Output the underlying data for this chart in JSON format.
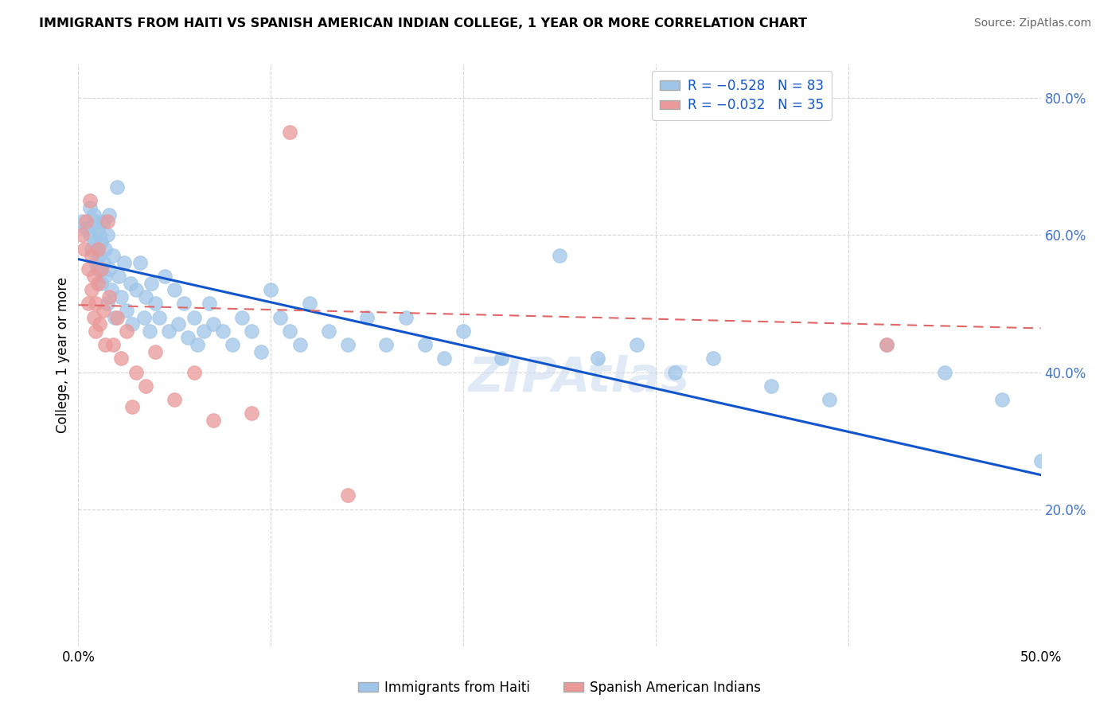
{
  "title": "IMMIGRANTS FROM HAITI VS SPANISH AMERICAN INDIAN COLLEGE, 1 YEAR OR MORE CORRELATION CHART",
  "source": "Source: ZipAtlas.com",
  "ylabel": "College, 1 year or more",
  "xlim": [
    0.0,
    0.5
  ],
  "ylim": [
    0.0,
    0.85
  ],
  "blue_color": "#9fc5e8",
  "pink_color": "#ea9999",
  "blue_line_color": "#1155cc",
  "pink_line_color": "#e06666",
  "legend_text_color": "#1155cc",
  "watermark": "ZIPAtlas",
  "legend_entry1_label": "Immigrants from Haiti",
  "legend_entry2_label": "Spanish American Indians",
  "blue_line_x": [
    0.0,
    0.5
  ],
  "blue_line_y": [
    0.565,
    0.25
  ],
  "pink_line_x": [
    0.0,
    0.5
  ],
  "pink_line_y": [
    0.498,
    0.464
  ],
  "blue_scatter_x": [
    0.002,
    0.004,
    0.006,
    0.006,
    0.007,
    0.008,
    0.008,
    0.009,
    0.009,
    0.01,
    0.01,
    0.01,
    0.011,
    0.011,
    0.012,
    0.012,
    0.013,
    0.013,
    0.014,
    0.014,
    0.015,
    0.015,
    0.016,
    0.016,
    0.017,
    0.018,
    0.019,
    0.02,
    0.021,
    0.022,
    0.024,
    0.025,
    0.027,
    0.028,
    0.03,
    0.032,
    0.034,
    0.035,
    0.037,
    0.038,
    0.04,
    0.042,
    0.045,
    0.047,
    0.05,
    0.052,
    0.055,
    0.057,
    0.06,
    0.062,
    0.065,
    0.068,
    0.07,
    0.075,
    0.08,
    0.085,
    0.09,
    0.095,
    0.1,
    0.105,
    0.11,
    0.115,
    0.12,
    0.13,
    0.14,
    0.15,
    0.16,
    0.17,
    0.18,
    0.19,
    0.2,
    0.22,
    0.25,
    0.27,
    0.29,
    0.31,
    0.33,
    0.36,
    0.39,
    0.42,
    0.45,
    0.48,
    0.5
  ],
  "blue_scatter_y": [
    0.62,
    0.61,
    0.64,
    0.6,
    0.58,
    0.63,
    0.59,
    0.56,
    0.62,
    0.61,
    0.58,
    0.55,
    0.6,
    0.57,
    0.59,
    0.53,
    0.56,
    0.62,
    0.54,
    0.58,
    0.6,
    0.5,
    0.55,
    0.63,
    0.52,
    0.57,
    0.48,
    0.67,
    0.54,
    0.51,
    0.56,
    0.49,
    0.53,
    0.47,
    0.52,
    0.56,
    0.48,
    0.51,
    0.46,
    0.53,
    0.5,
    0.48,
    0.54,
    0.46,
    0.52,
    0.47,
    0.5,
    0.45,
    0.48,
    0.44,
    0.46,
    0.5,
    0.47,
    0.46,
    0.44,
    0.48,
    0.46,
    0.43,
    0.52,
    0.48,
    0.46,
    0.44,
    0.5,
    0.46,
    0.44,
    0.48,
    0.44,
    0.48,
    0.44,
    0.42,
    0.46,
    0.42,
    0.57,
    0.42,
    0.44,
    0.4,
    0.42,
    0.38,
    0.36,
    0.44,
    0.4,
    0.36,
    0.27
  ],
  "pink_scatter_x": [
    0.002,
    0.003,
    0.004,
    0.005,
    0.005,
    0.006,
    0.007,
    0.007,
    0.008,
    0.008,
    0.009,
    0.009,
    0.01,
    0.01,
    0.011,
    0.012,
    0.013,
    0.014,
    0.015,
    0.016,
    0.018,
    0.02,
    0.022,
    0.025,
    0.028,
    0.03,
    0.035,
    0.04,
    0.05,
    0.06,
    0.07,
    0.09,
    0.11,
    0.14,
    0.42
  ],
  "pink_scatter_y": [
    0.6,
    0.58,
    0.62,
    0.55,
    0.5,
    0.65,
    0.52,
    0.57,
    0.48,
    0.54,
    0.5,
    0.46,
    0.58,
    0.53,
    0.47,
    0.55,
    0.49,
    0.44,
    0.62,
    0.51,
    0.44,
    0.48,
    0.42,
    0.46,
    0.35,
    0.4,
    0.38,
    0.43,
    0.36,
    0.4,
    0.33,
    0.34,
    0.75,
    0.22,
    0.44
  ]
}
